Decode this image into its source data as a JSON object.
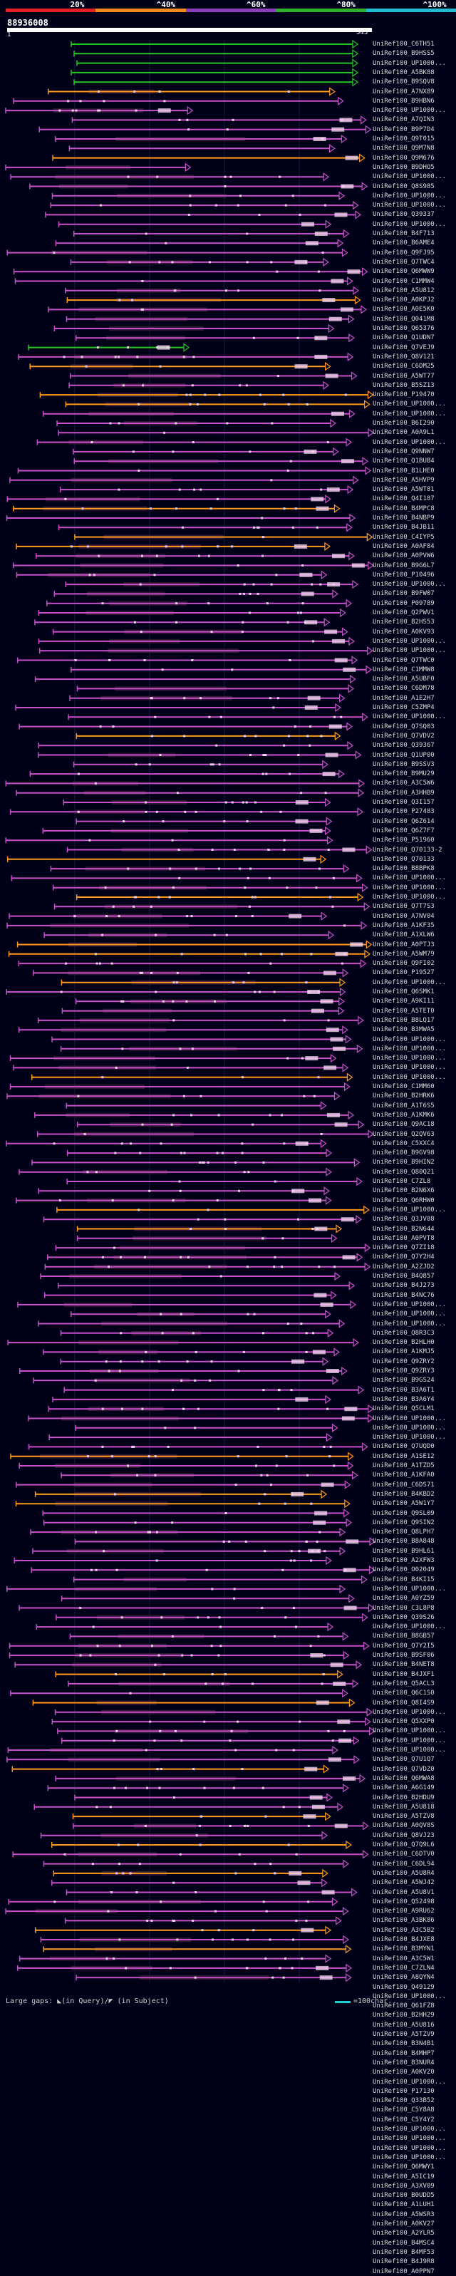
{
  "scale": {
    "ticks": [
      "20%",
      "^40%",
      "^60%",
      "^80%",
      "^100%"
    ],
    "colors": [
      "#e31f26",
      "#f28a1e",
      "#8b3fb8",
      "#2cb02c",
      "#1fbcd0"
    ]
  },
  "query": {
    "id": "88936008",
    "start": "1",
    "end": "543"
  },
  "colors": {
    "background": "#000018",
    "magenta": "#c850c8",
    "orange": "#ff9a1a",
    "green": "#22c822",
    "dark": "#3a1a3a",
    "marker": "#f4d2f0"
  },
  "hits": [
    "UniRef100_C6TH51",
    "UniRef100_B9HSS5",
    "UniRef100_UP1000...",
    "UniRef100_A5BK88",
    "UniRef100_B9SQV8",
    "UniRef100_A7NX89",
    "UniRef100_B9HBN6",
    "UniRef100_UP1000...",
    "UniRef100_A7QIN3",
    "UniRef100_B9P7D4",
    "UniRef100_Q9T015",
    "UniRef100_Q9M7N8",
    "UniRef100_Q9M676",
    "UniRef100_B9DHO5",
    "UniRef100_UP1000...",
    "UniRef100_Q8S985",
    "UniRef100_UP1000...",
    "UniRef100_UP1000...",
    "UniRef100_Q39337",
    "UniRef100_UP1000...",
    "UniRef100_B4F713",
    "UniRef100_B6AME4",
    "UniRef100_Q9FJ95",
    "UniRef100_Q7TWC4",
    "UniRef100_Q6MWW9",
    "UniRef100_C1MMW4",
    "UniRef100_A5U812",
    "UniRef100_A0KPJ2",
    "UniRef100_A0E5K0",
    "UniRef100_Q041M8",
    "UniRef100_Q65376",
    "UniRef100_Q1UDN7",
    "UniRef100_Q7VEJ9",
    "UniRef100_Q8V121",
    "UniRef100_C6DM25",
    "UniRef100_A5WT77",
    "UniRef100_B5SZ13",
    "UniRef100_P19470",
    "UniRef100_UP1000...",
    "UniRef100_UP1000...",
    "UniRef100_B6I290",
    "UniRef100_A0A9L1",
    "UniRef100_UP1000...",
    "UniRef100_Q9NNW7",
    "UniRef100_Q1BUB4",
    "UniRef100_B1LHE0",
    "UniRef100_A5HVP9",
    "UniRef100_A5WT81",
    "UniRef100_Q4I187",
    "UniRef100_B4MPC8",
    "UniRef100_B4NBP9",
    "UniRef100_B4JB11",
    "UniRef100_C4IYP5",
    "UniRef100_A0AF84",
    "UniRef100_A0PVW6",
    "UniRef100_B9G6L7",
    "UniRef100_P10496",
    "UniRef100_UP1000...",
    "UniRef100_B9FW07",
    "UniRef100_P09789",
    "UniRef100_Q2PWV1",
    "UniRef100_B2HS53",
    "UniRef100_A0KV93",
    "UniRef100_UP1000...",
    "UniRef100_UP1000...",
    "UniRef100_Q7TWC0",
    "UniRef100_C1MMW8",
    "UniRef100_A5UBF0",
    "UniRef100_C6DM78",
    "UniRef100_A1E2H7",
    "UniRef100_C5ZMP4",
    "UniRef100_UP1000...",
    "UniRef100_Q7SQ03",
    "UniRef100_Q7VDV2",
    "UniRef100_Q39367",
    "UniRef100_Q1UP00",
    "UniRef100_B9SSV3",
    "UniRef100_B9MU29",
    "UniRef100_A3C5W6",
    "UniRef100_A3HHB9",
    "UniRef100_Q3I157",
    "UniRef100_P27483",
    "UniRef100_Q6Z614",
    "UniRef100_Q6Z7F7",
    "UniRef100_P51960",
    "UniRef100_Q70133-2",
    "UniRef100_Q70133",
    "UniRef100_B8BPK8",
    "UniRef100_UP1000...",
    "UniRef100_UP1000...",
    "UniRef100_UP1000...",
    "UniRef100_Q7T7S3",
    "UniRef100_A7NV04",
    "UniRef100_A1KF35",
    "UniRef100_A1XLW6",
    "UniRef100_A0PTJ3",
    "UniRef100_A5WM79",
    "UniRef100_Q9FI02",
    "UniRef100_P19527",
    "UniRef100_UP1000...",
    "UniRef100_Q6SMK1",
    "UniRef100_A9KI11",
    "UniRef100_A5TET0",
    "UniRef100_B8LQ17",
    "UniRef100_B3MWA5",
    "UniRef100_UP1000...",
    "UniRef100_UP1000...",
    "UniRef100_UP1000...",
    "UniRef100_UP1000...",
    "UniRef100_UP1000...",
    "UniRef100_C1MM60",
    "UniRef100_B2HRK6",
    "UniRef100_A1T6S5",
    "UniRef100_A1KMK6",
    "UniRef100_Q9AC18",
    "UniRef100_Q2QV63",
    "UniRef100_C5XXC4",
    "UniRef100_B9GV98",
    "UniRef100_B9HIN2",
    "UniRef100_Q80Q21",
    "UniRef100_C7ZL8",
    "UniRef100_B2N6X6",
    "UniRef100_Q6RHW0",
    "UniRef100_UP1000...",
    "UniRef100_Q3JV88",
    "UniRef100_B2N644",
    "UniRef100_A0PVT8",
    "UniRef100_Q7ZI18",
    "UniRef100_Q7Y2H4",
    "UniRef100_A2ZJD2",
    "UniRef100_B4Q857",
    "UniRef100_B4J273",
    "UniRef100_B4NC76",
    "UniRef100_UP1000...",
    "UniRef100_UP1000...",
    "UniRef100_UP1000...",
    "UniRef100_Q8R3C3",
    "UniRef100_B2HLH0",
    "UniRef100_A1KMJ5",
    "UniRef100_Q9ZRY2",
    "UniRef100_Q9ZRY3",
    "UniRef100_B9GS24",
    "UniRef100_B3A6T1",
    "UniRef100_B3A6Y4",
    "UniRef100_Q5CLM1",
    "UniRef100_UP1000...",
    "UniRef100_UP1000...",
    "UniRef100_UP1000...",
    "UniRef100_Q7UQD0",
    "UniRef100_A1SE12",
    "UniRef100_A1TZD5",
    "UniRef100_A1KFA0",
    "UniRef100_C6DS71",
    "UniRef100_B4KBD2",
    "UniRef100_A5W1Y7",
    "UniRef100_Q9SL09",
    "UniRef100_Q9SIN2",
    "UniRef100_Q8LPH7",
    "UniRef100_B8A848",
    "UniRef100_B9HL61",
    "UniRef100_A2XFW3",
    "UniRef100_O02049",
    "UniRef100_B4KI15",
    "UniRef100_UP1000...",
    "UniRef100_A0YZ59",
    "UniRef100_C3L8P8",
    "UniRef100_Q39S26",
    "UniRef100_UP1000...",
    "UniRef100_B8GB57",
    "UniRef100_Q7Y2I5",
    "UniRef100_B9SF06",
    "UniRef100_B4NET8",
    "UniRef100_B4JXF1",
    "UniRef100_Q5ACL3",
    "UniRef100_Q6C1S0",
    "UniRef100_Q8I4S9",
    "UniRef100_UP1000...",
    "UniRef100_Q5XXP0",
    "UniRef100_UP1000...",
    "UniRef100_UP1000...",
    "UniRef100_UP1000...",
    "UniRef100_Q7U1Q7",
    "UniRef100_Q7VDZ0",
    "UniRef100_Q6MWA8",
    "UniRef100_A6G149",
    "UniRef100_B2HDU9",
    "UniRef100_A5U818",
    "UniRef100_A5TZV8",
    "UniRef100_A0QV8S",
    "UniRef100_Q8VJ23",
    "UniRef100_Q7Q9L6",
    "UniRef100_C6DTV0",
    "UniRef100_C6DL94",
    "UniRef100_A5U8R4",
    "UniRef100_A5WJ42",
    "UniRef100_A5U8V1",
    "UniRef100_Q52498",
    "UniRef100_A9RU62",
    "UniRef100_A3BK86",
    "UniRef100_A3C5B2",
    "UniRef100_B4JXE8",
    "UniRef100_B3MYN1",
    "UniRef100_A3C5W1",
    "UniRef100_C7ZLN4",
    "UniRef100_A8QYN4",
    "UniRef100_Q49129",
    "UniRef100_UP1000...",
    "UniRef100_Q61FZ8",
    "UniRef100_B2HH29",
    "UniRef100_A5U816",
    "UniRef100_A5TZV9",
    "UniRef100_B3N4B1",
    "UniRef100_B4MHP7",
    "UniRef100_B3NUR4",
    "UniRef100_A0KVZ0",
    "UniRef100_UP1000...",
    "UniRef100_P17130",
    "UniRef100_Q33B52",
    "UniRef100_C5Y8A8",
    "UniRef100_C5Y4Y2",
    "UniRef100_UP1000...",
    "UniRef100_UP1000...",
    "UniRef100_UP1000...",
    "UniRef100_UP1000...",
    "UniRef100_Q6MWY1",
    "UniRef100_A5IC19",
    "UniRef100_A3XV09",
    "UniRef100_B0UDD5",
    "UniRef100_A1LUH1",
    "UniRef100_A5WSR3",
    "UniRef100_A0KV27",
    "UniRef100_A2YLR5",
    "UniRef100_B4MSC4",
    "UniRef100_B4MF53",
    "UniRef100_B4J9R8",
    "UniRef100_A0PPN7"
  ],
  "legend": {
    "gaps_text": "Large gaps: ◣(in Query)/◤ (in Subject)",
    "scale_text": "=100char."
  }
}
